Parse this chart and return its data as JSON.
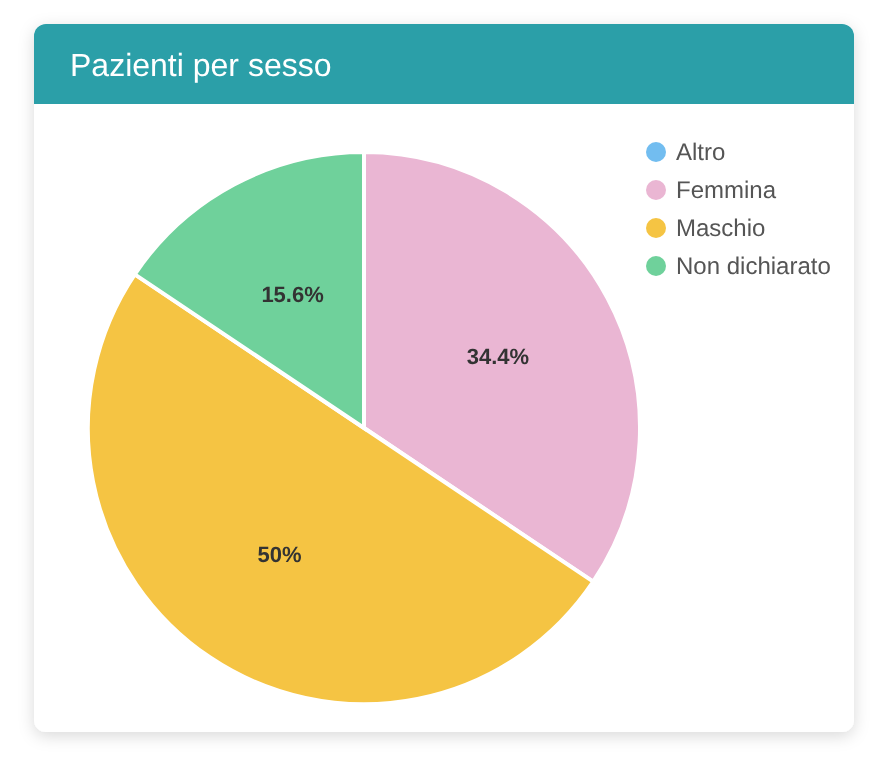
{
  "chart_data": {
    "type": "pie",
    "title": "Pazienti per sesso",
    "categories": [
      "Altro",
      "Femmina",
      "Maschio",
      "Non dichiarato"
    ],
    "values": [
      0,
      34.4,
      50,
      15.6
    ],
    "colors": [
      "#72bdf0",
      "#eab6d3",
      "#f5c443",
      "#6fd19b"
    ],
    "value_labels": [
      null,
      "34.4%",
      "50%",
      "15.6%"
    ],
    "legend": "top right"
  }
}
